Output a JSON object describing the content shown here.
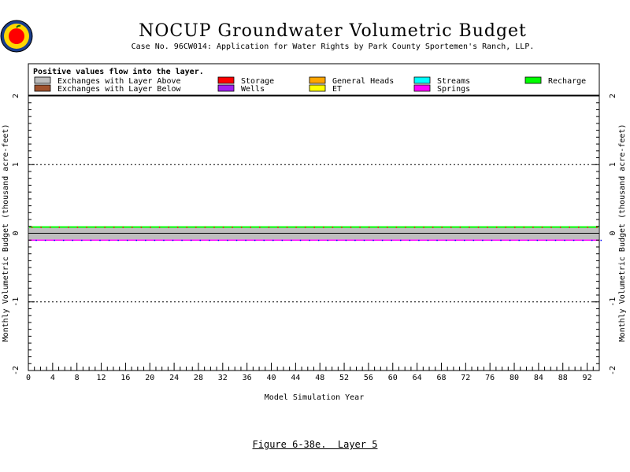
{
  "header": {
    "title": "NOCUP Groundwater Volumetric Budget",
    "subtitle": "Case No. 96CW014: Application for Water Rights by Park County Sportemen's Ranch, LLP.",
    "logo_icon": "apple-seal-icon"
  },
  "caption": "Figure 6-38e.  Layer 5",
  "chart_data": {
    "type": "area",
    "title": "NOCUP Groundwater Volumetric Budget",
    "xlabel": "Model Simulation Year",
    "ylabel": "Monthly Volumetric Budget (thousand acre-feet)",
    "xlim": [
      0,
      94
    ],
    "ylim": [
      -2,
      2
    ],
    "x_ticks": [
      0,
      4,
      8,
      12,
      16,
      20,
      24,
      28,
      32,
      36,
      40,
      44,
      48,
      52,
      56,
      60,
      64,
      68,
      72,
      76,
      80,
      84,
      88,
      92
    ],
    "y_ticks": [
      -2,
      -1,
      0,
      1,
      2
    ],
    "y_tick_labels": [
      "-2",
      "-1",
      "0",
      "1",
      "2"
    ],
    "dashed_gridlines_at": [
      -1,
      1
    ],
    "legend": {
      "note": "Positive values flow into the layer.",
      "placement": "top",
      "entries": [
        {
          "label": "Exchanges with Layer Above",
          "color": "#bebebe"
        },
        {
          "label": "Exchanges with Layer Below",
          "color": "#a0522d"
        },
        {
          "label": "Storage",
          "color": "#ff0000"
        },
        {
          "label": "Wells",
          "color": "#a020f0"
        },
        {
          "label": "General Heads",
          "color": "#ffa500"
        },
        {
          "label": "ET",
          "color": "#ffff00"
        },
        {
          "label": "Streams",
          "color": "#00ffff"
        },
        {
          "label": "Springs",
          "color": "#ff00ff"
        },
        {
          "label": "Recharge",
          "color": "#00ff00"
        }
      ]
    },
    "series": [
      {
        "name": "Exchanges with Layer Above",
        "approx_value_positive": 0.08,
        "approx_value_negative": -0.09
      },
      {
        "name": "Recharge",
        "approx_value": 0.09
      },
      {
        "name": "Springs",
        "approx_value": -0.1
      },
      {
        "name": "Storage",
        "approx_value": 0.0
      }
    ]
  }
}
